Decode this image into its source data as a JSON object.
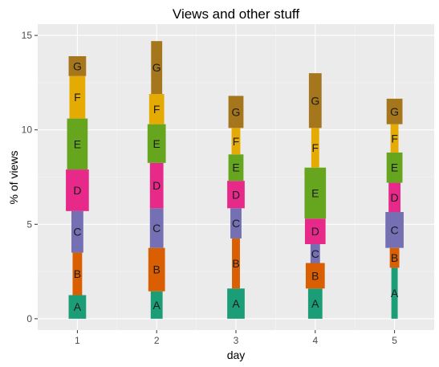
{
  "chart_data": {
    "type": "bar",
    "title": "Views and other stuff",
    "xlabel": "day",
    "ylabel": "% of views",
    "categories": [
      "1",
      "2",
      "3",
      "4",
      "5"
    ],
    "yticks": [
      "0",
      "5",
      "10",
      "15"
    ],
    "ylim": [
      -0.6,
      15.6
    ],
    "grid": true,
    "legend": "none",
    "series": [
      {
        "name": "A",
        "color": "#1b9e77",
        "values": [
          1.25,
          1.45,
          1.6,
          1.6,
          2.7
        ],
        "widths": [
          0.22,
          0.15,
          0.22,
          0.18,
          0.08
        ]
      },
      {
        "name": "B",
        "color": "#d95f02",
        "values": [
          2.25,
          2.3,
          2.65,
          1.35,
          1.05
        ],
        "widths": [
          0.12,
          0.21,
          0.1,
          0.24,
          0.12
        ]
      },
      {
        "name": "C",
        "color": "#7570b3",
        "values": [
          2.2,
          2.1,
          1.6,
          1.0,
          1.9
        ],
        "widths": [
          0.15,
          0.17,
          0.14,
          0.12,
          0.23
        ]
      },
      {
        "name": "D",
        "color": "#e7298a",
        "values": [
          2.2,
          2.4,
          1.45,
          1.35,
          1.55
        ],
        "widths": [
          0.29,
          0.17,
          0.22,
          0.26,
          0.15
        ]
      },
      {
        "name": "E",
        "color": "#66a61e",
        "values": [
          2.7,
          2.05,
          1.4,
          2.7,
          1.6
        ],
        "widths": [
          0.26,
          0.23,
          0.19,
          0.27,
          0.2
        ]
      },
      {
        "name": "F",
        "color": "#e6ab02",
        "values": [
          2.25,
          1.6,
          1.4,
          2.1,
          1.5
        ],
        "widths": [
          0.2,
          0.19,
          0.11,
          0.1,
          0.1
        ]
      },
      {
        "name": "G",
        "color": "#a6761d",
        "values": [
          1.05,
          2.8,
          1.7,
          2.9,
          1.35
        ],
        "widths": [
          0.22,
          0.14,
          0.19,
          0.16,
          0.2
        ]
      }
    ]
  }
}
